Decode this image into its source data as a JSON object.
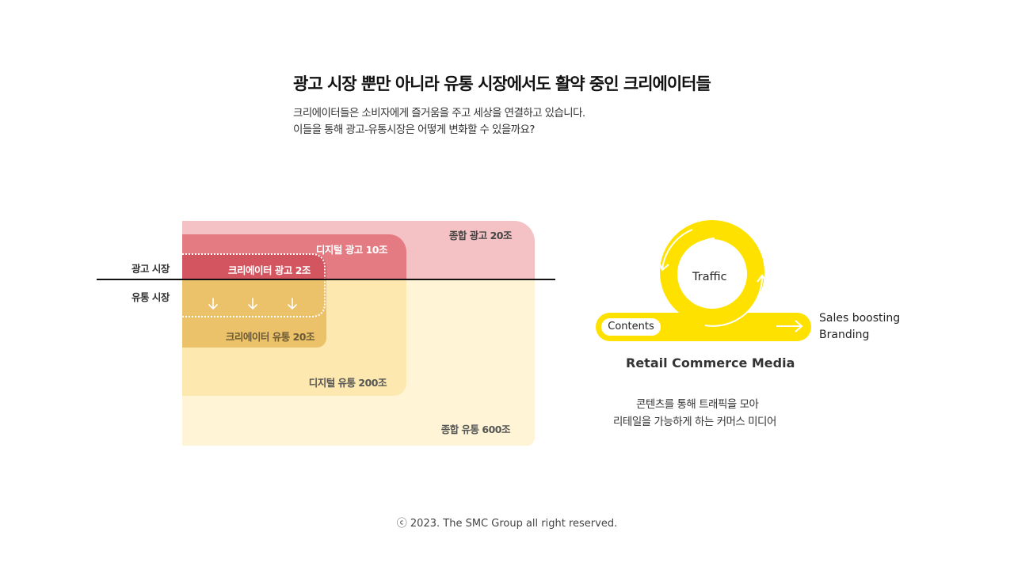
{
  "header": {
    "title": "광고 시장 뿐만 아니라 유통 시장에서도 활약 중인 크리에이터들",
    "desc_line1": "크리에이터들은 소비자에게 즐거움을 주고 세상을 연결하고 있습니다.",
    "desc_line2": "이들을 통해 광고-유통시장은 어떻게 변화할 수 있을까요?"
  },
  "market": {
    "side_labels": {
      "ad": "광고 시장",
      "distribution": "유통 시장"
    },
    "total_ad": "종합 광고 20조",
    "digital_ad": "디지털 광고 10조",
    "creator_ad": "크리에이터 광고 2조",
    "creator_distribution": "크리에이터 유통 20조",
    "digital_distribution": "디지털 유통 200조",
    "total_distribution": "종합 유통 600조",
    "colors": {
      "total_ad": "#f4c1c4",
      "digital_ad": "#e57b82",
      "creator_ad": "#d35560",
      "total_distribution": "#fff5d6",
      "digital_distribution": "#fde8b0",
      "creator_distribution": "#ebc16a"
    }
  },
  "flow": {
    "center_label": "Traffic",
    "start_label": "Contents",
    "outcomes": [
      "Sales boosting",
      "Branding"
    ],
    "title": "Retail Commerce Media",
    "desc_line1": "콘텐츠를 통해 트래픽을 모아",
    "desc_line2": "리테일을 가능하게 하는 커머스 미디어",
    "accent_color": "#ffe100"
  },
  "footer": {
    "copyright": "ⓒ 2023. The SMC Group all right reserved."
  }
}
